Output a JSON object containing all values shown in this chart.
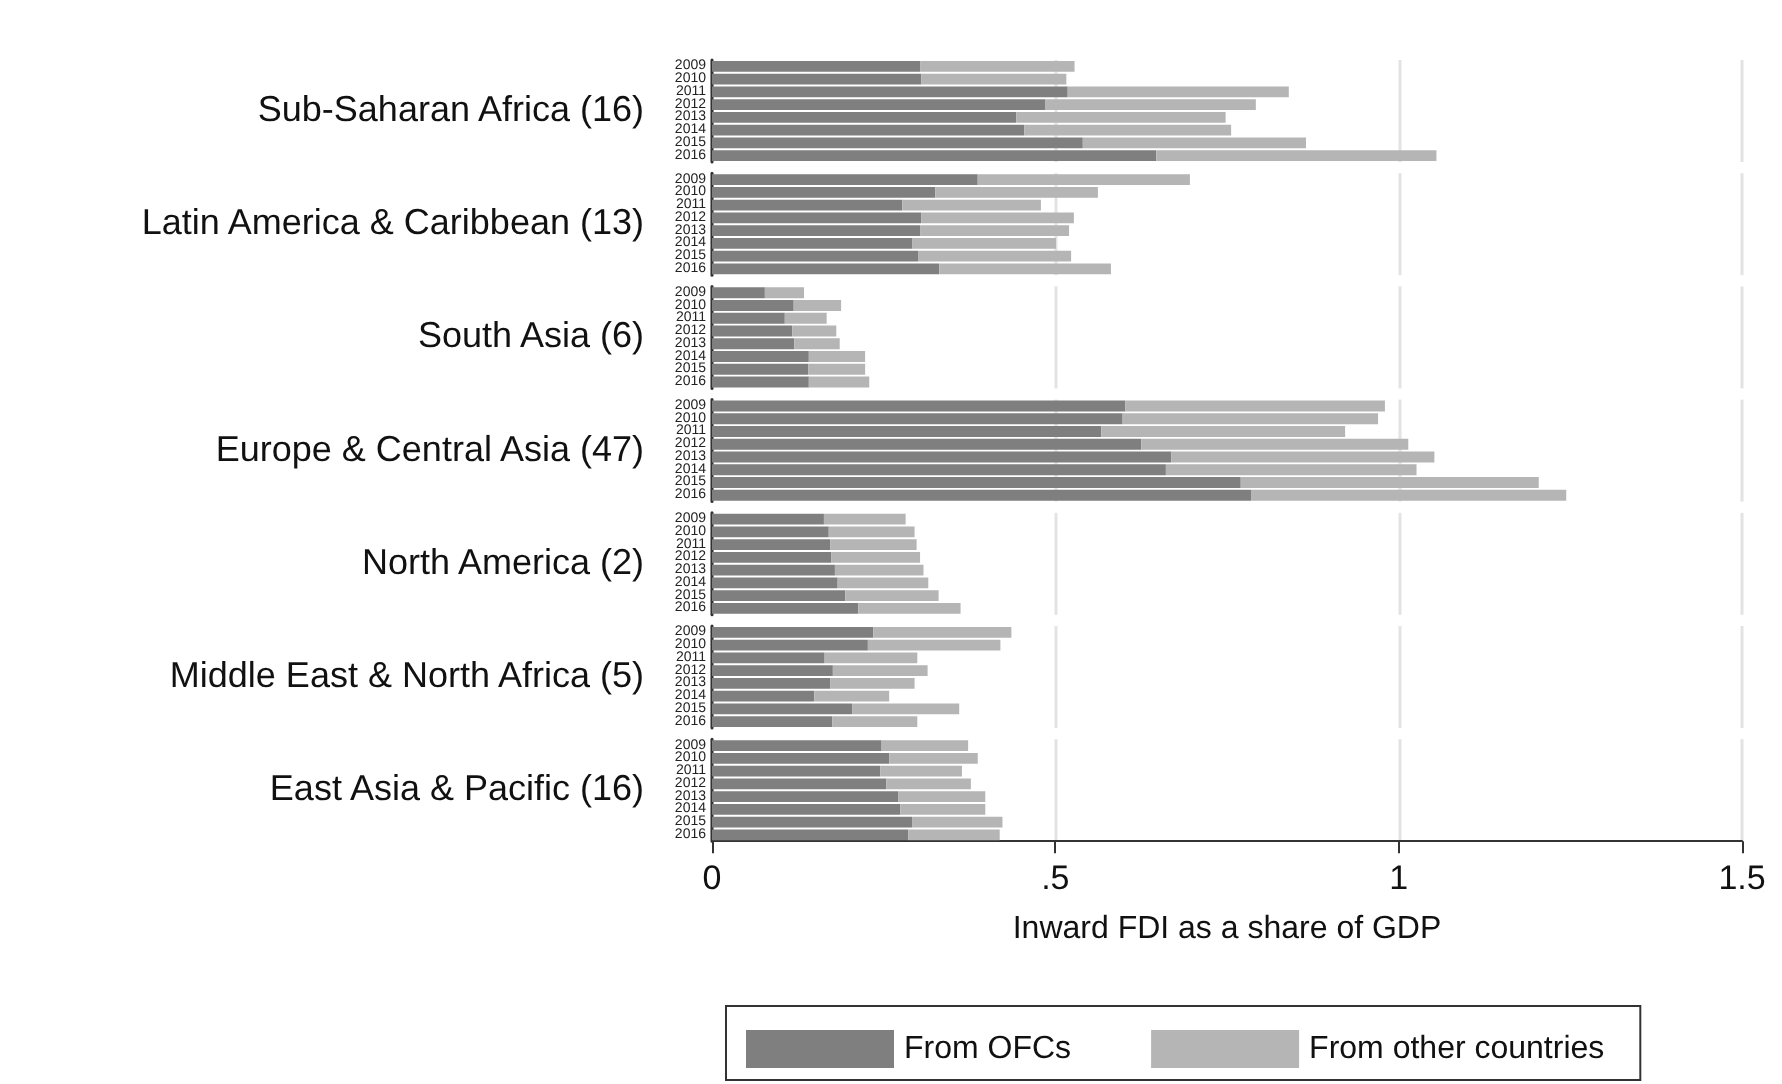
{
  "chart_data": {
    "type": "bar",
    "orientation": "horizontal",
    "stacked": true,
    "xlabel": "Inward FDI as a share of GDP",
    "annotations": [
      "Sub-Saharan Africa (16)",
      "Latin America & Caribbean (13)",
      "South Asia (6)",
      "Europe & Central Asia (47)",
      "North America (2)",
      "Middle East & North Africa (5)",
      "East Asia & Pacific (16)"
    ],
    "categories": [
      "2009",
      "2010",
      "2011",
      "2012",
      "2013",
      "2014",
      "2015",
      "2016",
      "2009",
      "2010",
      "2011",
      "2012",
      "2013",
      "2014",
      "2015",
      "2016",
      "2009",
      "2010",
      "2011",
      "2012",
      "2013",
      "2014",
      "2015",
      "2016",
      "2009",
      "2010",
      "2011",
      "2012",
      "2013",
      "2014",
      "2015",
      "2016",
      "2009",
      "2010",
      "2011",
      "2012",
      "2013",
      "2014",
      "2015",
      "2016",
      "2009",
      "2010",
      "2011",
      "2012",
      "2013",
      "2014",
      "2015",
      "2016",
      "2009",
      "2010",
      "2011",
      "2012",
      "2013",
      "2014",
      "2015",
      "2016"
    ],
    "series": [
      {
        "name": "From OFCs",
        "color": "#7f7f7f",
        "values": [
          0.303,
          0.305,
          0.518,
          0.485,
          0.443,
          0.455,
          0.54,
          0.647,
          0.387,
          0.325,
          0.277,
          0.305,
          0.303,
          0.292,
          0.3,
          0.331,
          0.077,
          0.119,
          0.106,
          0.117,
          0.12,
          0.141,
          0.14,
          0.141,
          0.602,
          0.598,
          0.567,
          0.625,
          0.669,
          0.661,
          0.77,
          0.785,
          0.163,
          0.17,
          0.172,
          0.174,
          0.179,
          0.183,
          0.194,
          0.213,
          0.235,
          0.227,
          0.164,
          0.176,
          0.172,
          0.149,
          0.204,
          0.175,
          0.247,
          0.258,
          0.245,
          0.254,
          0.271,
          0.274,
          0.292,
          0.286
        ]
      },
      {
        "name": "From other countries",
        "color": "#b5b5b5",
        "values": [
          0.225,
          0.211,
          0.322,
          0.307,
          0.305,
          0.301,
          0.325,
          0.408,
          0.309,
          0.237,
          0.202,
          0.222,
          0.217,
          0.209,
          0.223,
          0.25,
          0.057,
          0.069,
          0.061,
          0.064,
          0.066,
          0.082,
          0.083,
          0.088,
          0.378,
          0.372,
          0.355,
          0.389,
          0.383,
          0.365,
          0.434,
          0.459,
          0.119,
          0.125,
          0.126,
          0.129,
          0.129,
          0.132,
          0.136,
          0.149,
          0.201,
          0.193,
          0.135,
          0.138,
          0.123,
          0.109,
          0.156,
          0.124,
          0.126,
          0.129,
          0.119,
          0.123,
          0.127,
          0.124,
          0.131,
          0.133
        ]
      }
    ],
    "xlim": [
      0,
      1.5
    ],
    "xticks": [
      0,
      {
        "value": 0.5,
        "label": ".5"
      },
      1,
      1.5
    ],
    "grid": "x",
    "legend": "bottom"
  }
}
